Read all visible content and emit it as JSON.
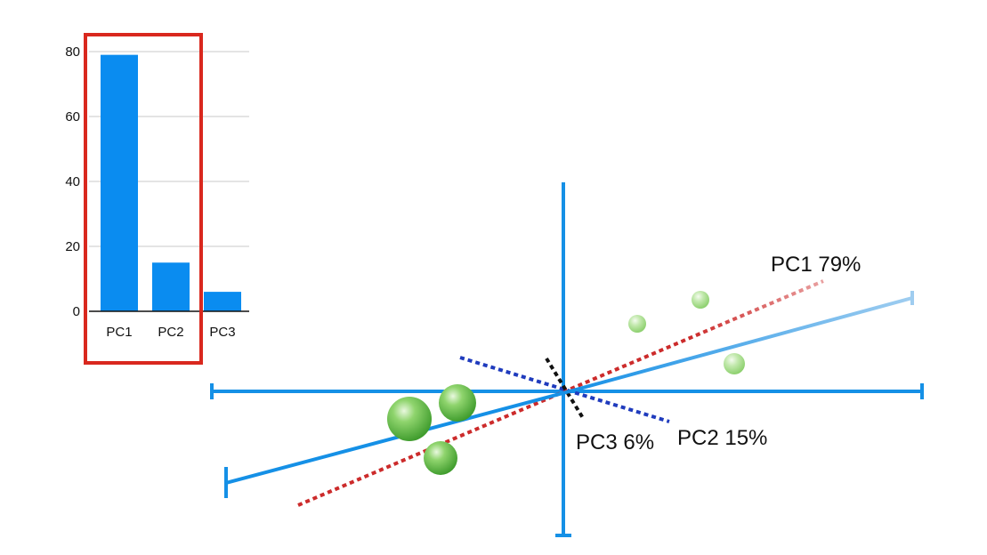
{
  "colors": {
    "bar": "#0a8cf0",
    "axis": "#1590e6",
    "highlight": "#d9281e",
    "pc1_line": "#cc2b2b",
    "pc2_line": "#1f3bbd",
    "pc3_line": "#111111",
    "points": "#6bc64a"
  },
  "chart_data": {
    "type": "bar",
    "categories": [
      "PC1",
      "PC2",
      "PC3"
    ],
    "values": [
      79,
      15,
      6
    ],
    "title": "",
    "xlabel": "",
    "ylabel": "",
    "ylim": [
      0,
      80
    ],
    "yticks": [
      "0",
      "20",
      "40",
      "60",
      "80"
    ],
    "grid": true,
    "highlighted_categories": [
      "PC1",
      "PC2"
    ]
  },
  "diagram": {
    "labels": {
      "pc1": "PC1 79%",
      "pc2": "PC2 15%",
      "pc3": "PC3 6%"
    }
  }
}
